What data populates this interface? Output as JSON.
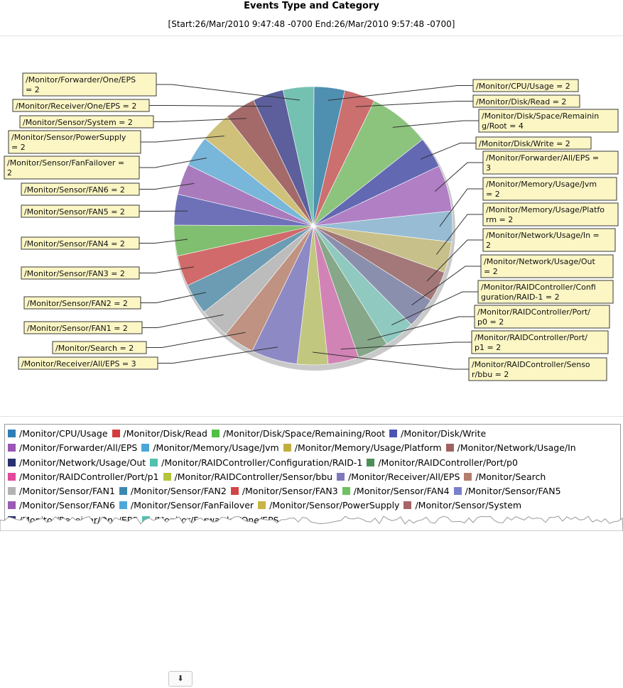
{
  "chart_data": {
    "type": "pie",
    "title": "Events Type and Category",
    "subtitle": "[Start:26/Mar/2010 9:47:48 -0700    End:26/Mar/2010 9:57:48 -0700]",
    "slices": [
      {
        "name": "/Monitor/CPU/Usage",
        "value": 2,
        "color": "#4f8fb0",
        "label": [
          "/Monitor/CPU/Usage = 2"
        ]
      },
      {
        "name": "/Monitor/Disk/Read",
        "value": 2,
        "color": "#cc6f6f",
        "label": [
          "/Monitor/Disk/Read = 2"
        ]
      },
      {
        "name": "/Monitor/Disk/Space/Remaining/Root",
        "value": 4,
        "color": "#8cc47e",
        "label": [
          "/Monitor/Disk/Space/Remainin",
          "g/Root = 4"
        ]
      },
      {
        "name": "/Monitor/Disk/Write",
        "value": 2,
        "color": "#6268b2",
        "label": [
          "/Monitor/Disk/Write = 2"
        ]
      },
      {
        "name": "/Monitor/Forwarder/All/EPS",
        "value": 3,
        "color": "#b07fc4",
        "label": [
          "/Monitor/Forwarder/All/EPS =",
          "3"
        ]
      },
      {
        "name": "/Monitor/Memory/Usage/Jvm",
        "value": 2,
        "color": "#98bcd4",
        "label": [
          "/Monitor/Memory/Usage/Jvm",
          "= 2"
        ]
      },
      {
        "name": "/Monitor/Memory/Usage/Platform",
        "value": 2,
        "color": "#c8c08a",
        "label": [
          "/Monitor/Memory/Usage/Platfo",
          "rm = 2"
        ]
      },
      {
        "name": "/Monitor/Network/Usage/In",
        "value": 2,
        "color": "#a47878",
        "label": [
          "/Monitor/Network/Usage/In =",
          "2"
        ]
      },
      {
        "name": "/Monitor/Network/Usage/Out",
        "value": 2,
        "color": "#8a8fae",
        "label": [
          "/Monitor/Network/Usage/Out",
          "= 2"
        ]
      },
      {
        "name": "/Monitor/RAIDController/Configuration/RAID-1",
        "value": 2,
        "color": "#8fc9c0",
        "label": [
          "/Monitor/RAIDController/Confi",
          "guration/RAID-1 = 2"
        ]
      },
      {
        "name": "/Monitor/RAIDController/Port/p0",
        "value": 2,
        "color": "#86a788",
        "label": [
          "/Monitor/RAIDController/Port/",
          "p0 = 2"
        ]
      },
      {
        "name": "/Monitor/RAIDController/Port/p1",
        "value": 2,
        "color": "#d283b5",
        "label": [
          "/Monitor/RAIDController/Port/",
          "p1 = 2"
        ]
      },
      {
        "name": "/Monitor/RAIDController/Sensor/bbu",
        "value": 2,
        "color": "#c2c77f",
        "label": [
          "/Monitor/RAIDController/Senso",
          "r/bbu = 2"
        ]
      },
      {
        "name": "/Monitor/Receiver/All/EPS",
        "value": 3,
        "color": "#8c89c4",
        "label": [
          "/Monitor/Receiver/All/EPS = 3"
        ]
      },
      {
        "name": "/Monitor/Search",
        "value": 2,
        "color": "#c09282",
        "label": [
          "/Monitor/Search = 2"
        ]
      },
      {
        "name": "/Monitor/Sensor/FAN1",
        "value": 2,
        "color": "#bcbcbc",
        "label": [
          "/Monitor/Sensor/FAN1 = 2"
        ]
      },
      {
        "name": "/Monitor/Sensor/FAN2",
        "value": 2,
        "color": "#6b9cb3",
        "label": [
          "/Monitor/Sensor/FAN2 = 2"
        ]
      },
      {
        "name": "/Monitor/Sensor/FAN3",
        "value": 2,
        "color": "#d16a6a",
        "label": [
          "/Monitor/Sensor/FAN3 = 2"
        ]
      },
      {
        "name": "/Monitor/Sensor/FAN4",
        "value": 2,
        "color": "#7fbf6f",
        "label": [
          "/Monitor/Sensor/FAN4 = 2"
        ]
      },
      {
        "name": "/Monitor/Sensor/FAN5",
        "value": 2,
        "color": "#6e71b8",
        "label": [
          "/Monitor/Sensor/FAN5 = 2"
        ]
      },
      {
        "name": "/Monitor/Sensor/FAN6",
        "value": 2,
        "color": "#a97bbd",
        "label": [
          "/Monitor/Sensor/FAN6 = 2"
        ]
      },
      {
        "name": "/Monitor/Sensor/FanFailover",
        "value": 2,
        "color": "#78b6da",
        "label": [
          "/Monitor/Sensor/FanFailover =",
          "2"
        ]
      },
      {
        "name": "/Monitor/Sensor/PowerSupply",
        "value": 2,
        "color": "#cfc07a",
        "label": [
          "/Monitor/Sensor/PowerSupply",
          "= 2"
        ]
      },
      {
        "name": "/Monitor/Sensor/System",
        "value": 2,
        "color": "#a46a6a",
        "label": [
          "/Monitor/Sensor/System = 2"
        ]
      },
      {
        "name": "/Monitor/Receiver/One/EPS",
        "value": 2,
        "color": "#5c5f9c",
        "label": [
          "/Monitor/Receiver/One/EPS = 2"
        ]
      },
      {
        "name": "/Monitor/Forwarder/One/EPS",
        "value": 2,
        "color": "#74c1b1",
        "label": [
          "/Monitor/Forwarder/One/EPS",
          "= 2"
        ]
      }
    ],
    "legend": {
      "placement": "bottom",
      "rows": [
        [
          {
            "text": "/Monitor/CPU/Usage",
            "color": "#2e7db4"
          },
          {
            "text": "/Monitor/Disk/Read",
            "color": "#d43b3b"
          },
          {
            "text": "/Monitor/Disk/Space/Remaining/Root",
            "color": "#4fbf45"
          },
          {
            "text": "/Monitor/Disk/Write",
            "color": "#4a54b2"
          }
        ],
        [
          {
            "text": "/Monitor/Forwarder/All/EPS",
            "color": "#9b55b4"
          },
          {
            "text": "/Monitor/Memory/Usage/Jvm",
            "color": "#4aa6d9"
          },
          {
            "text": "/Monitor/Memory/Usage/Platform",
            "color": "#c3ad3f"
          },
          {
            "text": "/Monitor/Network/Usage/In",
            "color": "#a06262"
          }
        ],
        [
          {
            "text": "/Monitor/Network/Usage/Out",
            "color": "#283070"
          },
          {
            "text": "/Monitor/RAIDController/Configuration/RAID-1",
            "color": "#4fc1ad"
          },
          {
            "text": "/Monitor/RAIDController/Port/p0",
            "color": "#4e8f56"
          }
        ],
        [
          {
            "text": "/Monitor/RAIDController/Port/p1",
            "color": "#e2489b"
          },
          {
            "text": "/Monitor/RAIDController/Sensor/bbu",
            "color": "#b4c43c"
          },
          {
            "text": "/Monitor/Receiver/All/EPS",
            "color": "#7e78bd"
          },
          {
            "text": "/Monitor/Search",
            "color": "#b47e6c"
          }
        ],
        [
          {
            "text": "/Monitor/Sensor/FAN1",
            "color": "#b3b3b3"
          },
          {
            "text": "/Monitor/Sensor/FAN2",
            "color": "#3c89b0"
          },
          {
            "text": "/Monitor/Sensor/FAN3",
            "color": "#d34545"
          },
          {
            "text": "/Monitor/Sensor/FAN4",
            "color": "#6cc25e"
          },
          {
            "text": "/Monitor/Sensor/FAN5",
            "color": "#7b7fca"
          }
        ],
        [
          {
            "text": "/Monitor/Sensor/FAN6",
            "color": "#9a5bb4"
          },
          {
            "text": "/Monitor/Sensor/FanFailover",
            "color": "#4ea8da"
          },
          {
            "text": "/Monitor/Sensor/PowerSupply",
            "color": "#c7b545"
          },
          {
            "text": "/Monitor/Sensor/System",
            "color": "#a86565"
          }
        ],
        [
          {
            "text": "/Monitor/Receiver/One/EPS",
            "color": "#2c3374"
          },
          {
            "text": "/Monitor/Forwarder/One/EPS",
            "color": "#50c2b1"
          }
        ]
      ]
    }
  },
  "controls": {
    "scroll_button_icon": "arrow-down-to-bar-icon",
    "scroll_button_glyph": "⬇"
  }
}
